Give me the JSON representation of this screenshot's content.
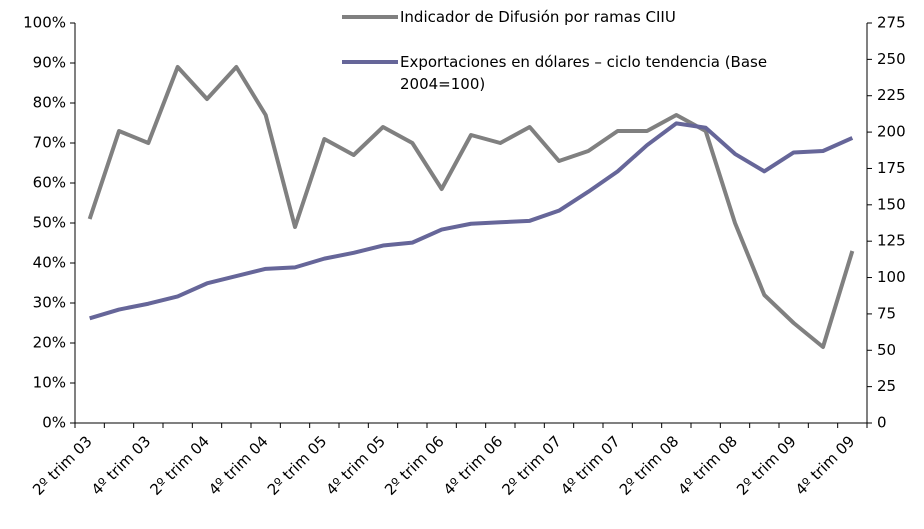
{
  "chart_data": {
    "type": "line",
    "categories": [
      "2º trim 03",
      null,
      "4º trim 03",
      null,
      "2º trim 04",
      null,
      "4º trim 04",
      null,
      "2º trim 05",
      null,
      "4º trim 05",
      null,
      "2º trim 06",
      null,
      "4º trim 06",
      null,
      "2º trim 07",
      null,
      "4º trim 07",
      null,
      "2º trim 08",
      null,
      "4º trim 08",
      null,
      "2º trim 09",
      null,
      "4º trim 09"
    ],
    "series": [
      {
        "name": "Indicador de Difusión por ramas CIIU",
        "color": "#808080",
        "axis": "y",
        "values": [
          51,
          73,
          70,
          89,
          81,
          89,
          77,
          49,
          71,
          67,
          74,
          70,
          58.5,
          72,
          70,
          74,
          65.5,
          68,
          73,
          73,
          77,
          73,
          50,
          32,
          25,
          19,
          43
        ]
      },
      {
        "name": "Exportaciones en dólares – ciclo tendencia (Base 2004=100)",
        "color": "#666699",
        "axis": "y2",
        "values": [
          72,
          78,
          82,
          87,
          96,
          101,
          106,
          107,
          113,
          117,
          122,
          124,
          133,
          137,
          138,
          139,
          146,
          159,
          173,
          191,
          206,
          203,
          185,
          173,
          186,
          187,
          196
        ]
      }
    ],
    "ylim": [
      0,
      100
    ],
    "yticks": [
      {
        "value": 0,
        "label": "0%"
      },
      {
        "value": 10,
        "label": "10%"
      },
      {
        "value": 20,
        "label": "20%"
      },
      {
        "value": 30,
        "label": "30%"
      },
      {
        "value": 40,
        "label": "40%"
      },
      {
        "value": 50,
        "label": "50%"
      },
      {
        "value": 60,
        "label": "60%"
      },
      {
        "value": 70,
        "label": "70%"
      },
      {
        "value": 80,
        "label": "80%"
      },
      {
        "value": 90,
        "label": "90%"
      },
      {
        "value": 100,
        "label": "100%"
      }
    ],
    "y2lim": [
      0,
      275
    ],
    "y2ticks": [
      0,
      25,
      50,
      75,
      100,
      125,
      150,
      175,
      200,
      225,
      250,
      275
    ]
  }
}
